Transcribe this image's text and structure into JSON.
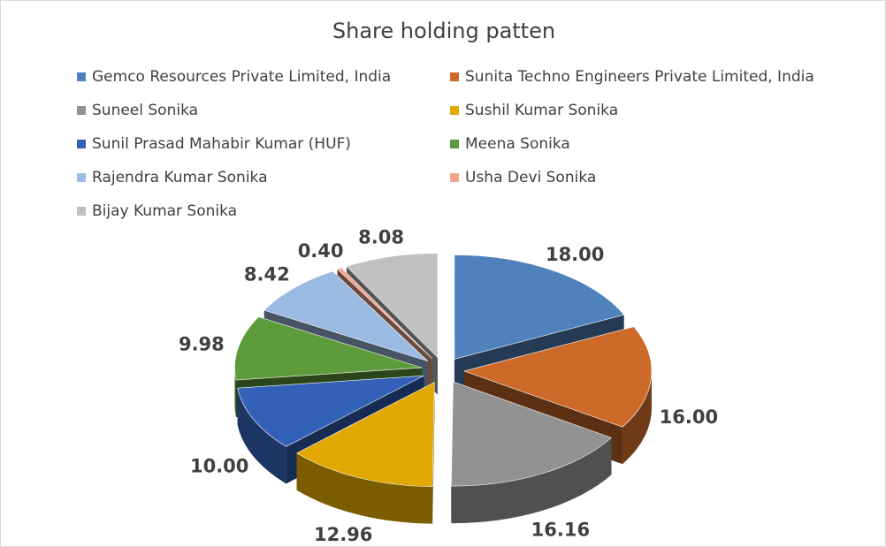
{
  "chart_data": {
    "type": "pie",
    "variant": "3d-exploded",
    "title": "Share holding patten",
    "legend_position": "top",
    "slices": [
      {
        "label": "Gemco Resources Private Limited, India",
        "value": 18.0,
        "display": "18.00",
        "color": "#4f81bd"
      },
      {
        "label": "Sunita Techno Engineers Private Limited, India",
        "value": 16.0,
        "display": "16.00",
        "color": "#cd6a2a"
      },
      {
        "label": "Suneel Sonika",
        "value": 16.16,
        "display": "16.16",
        "color": "#929292"
      },
      {
        "label": "Sushil Kumar Sonika",
        "value": 12.96,
        "display": "12.96",
        "color": "#e0a800"
      },
      {
        "label": "Sunil Prasad Mahabir  Kumar (HUF)",
        "value": 10.0,
        "display": "10.00",
        "color": "#3461b8"
      },
      {
        "label": "Meena Sonika",
        "value": 9.98,
        "display": "9.98",
        "color": "#5e9b3a"
      },
      {
        "label": "Rajendra Kumar Sonika",
        "value": 8.42,
        "display": "8.42",
        "color": "#9bbbe3"
      },
      {
        "label": "Usha Devi Sonika",
        "value": 0.4,
        "display": "0.40",
        "color": "#f2a58b"
      },
      {
        "label": "Bijay Kumar Sonika",
        "value": 8.08,
        "display": "8.08",
        "color": "#c0c0c0"
      }
    ]
  }
}
